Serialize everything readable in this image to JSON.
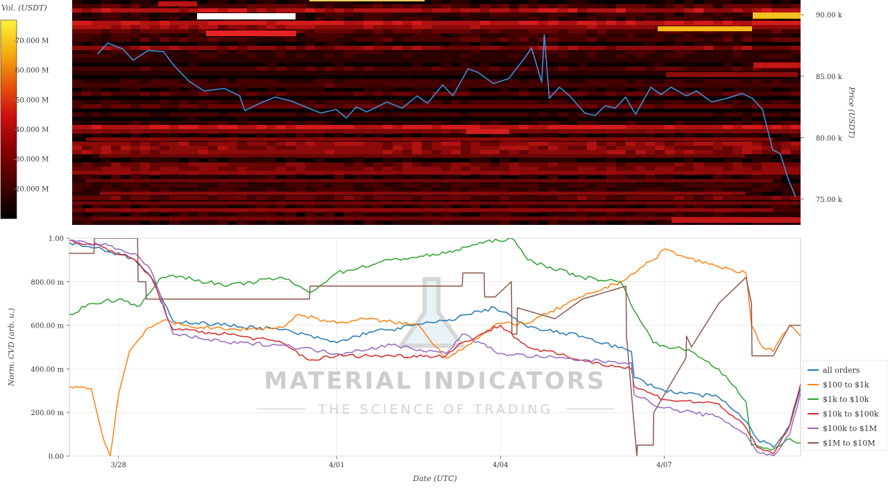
{
  "chart_data": [
    {
      "type": "heatmap",
      "colorbar": {
        "label": "Vol. (USDT)",
        "ticks": [
          "20.000 M",
          "30.000 M",
          "40.000 M",
          "50.000 M",
          "60.000 M",
          "70.000 M"
        ],
        "tick_values": [
          20,
          30,
          40,
          50,
          60,
          70
        ],
        "range": [
          10,
          77
        ],
        "colors": [
          "#000000",
          "#3a0000",
          "#8a0000",
          "#cc1010",
          "#e85a0a",
          "#f5b010",
          "#fff23a"
        ]
      },
      "y_axis": {
        "label": "Price (USDT)",
        "ticks": [
          "75.00 k",
          "80.00 k",
          "85.00 k",
          "90.00 k"
        ],
        "tick_values": [
          75,
          80,
          85,
          90
        ],
        "range": [
          72.9,
          91.2
        ]
      },
      "x_range": [
        -0.5,
        13.85
      ],
      "price_series": [
        [
          0,
          86.8
        ],
        [
          0.2,
          87.7
        ],
        [
          0.5,
          87.2
        ],
        [
          0.7,
          86.3
        ],
        [
          1.0,
          87.1
        ],
        [
          1.3,
          87.0
        ],
        [
          1.5,
          85.9
        ],
        [
          1.8,
          84.6
        ],
        [
          2.1,
          83.8
        ],
        [
          2.5,
          84.0
        ],
        [
          2.8,
          83.4
        ],
        [
          2.9,
          82.2
        ],
        [
          3.2,
          82.8
        ],
        [
          3.5,
          83.3
        ],
        [
          3.8,
          83.0
        ],
        [
          4.1,
          82.5
        ],
        [
          4.4,
          82.0
        ],
        [
          4.7,
          82.3
        ],
        [
          4.9,
          81.6
        ],
        [
          5.1,
          82.5
        ],
        [
          5.3,
          82.1
        ],
        [
          5.7,
          82.9
        ],
        [
          6.0,
          82.4
        ],
        [
          6.3,
          83.4
        ],
        [
          6.5,
          82.8
        ],
        [
          6.8,
          84.3
        ],
        [
          7.0,
          83.4
        ],
        [
          7.3,
          85.6
        ],
        [
          7.5,
          85.3
        ],
        [
          7.8,
          84.4
        ],
        [
          8.1,
          84.8
        ],
        [
          8.4,
          86.4
        ],
        [
          8.55,
          87.3
        ],
        [
          8.75,
          84.5
        ],
        [
          8.8,
          88.4
        ],
        [
          8.9,
          83.2
        ],
        [
          9.1,
          84.1
        ],
        [
          9.3,
          83.4
        ],
        [
          9.6,
          82.0
        ],
        [
          9.8,
          81.8
        ],
        [
          10.0,
          82.6
        ],
        [
          10.2,
          82.4
        ],
        [
          10.4,
          83.3
        ],
        [
          10.6,
          81.9
        ],
        [
          10.9,
          84.1
        ],
        [
          11.1,
          83.5
        ],
        [
          11.3,
          84.1
        ],
        [
          11.6,
          83.4
        ],
        [
          11.8,
          83.8
        ],
        [
          12.1,
          82.9
        ],
        [
          12.4,
          83.2
        ],
        [
          12.7,
          83.6
        ],
        [
          12.9,
          83.2
        ],
        [
          13.1,
          82.3
        ],
        [
          13.3,
          79.0
        ],
        [
          13.45,
          78.7
        ],
        [
          13.6,
          76.7
        ],
        [
          13.75,
          75.2
        ]
      ],
      "line_color": "#3d8fd6",
      "annotation": "White/yellow bars at top indicate large liquidity walls near 89–90 k"
    },
    {
      "type": "line",
      "xlabel": "Date (UTC)",
      "ylabel": "Norm. CVD (arb. u.)",
      "x_ticks": [
        "3/28",
        "4/01",
        "4/04",
        "4/07"
      ],
      "x_tick_values": [
        0,
        4,
        7,
        10
      ],
      "xlim": [
        -0.9,
        12.5
      ],
      "ylim": [
        0,
        1
      ],
      "y_ticks": [
        "0.00",
        "200.00 m",
        "400.00 m",
        "600.00 m",
        "800.00 m",
        "1.00"
      ],
      "y_tick_values": [
        0,
        0.2,
        0.4,
        0.6,
        0.8,
        1.0
      ],
      "legend_position": "right",
      "series": [
        {
          "name": "all orders",
          "color": "#1f77b4",
          "x": [
            -0.9,
            -0.3,
            0.3,
            0.6,
            1.0,
            2.0,
            3.0,
            4.0,
            4.6,
            5.0,
            5.4,
            6.0,
            6.4,
            6.9,
            7.1,
            7.5,
            8.5,
            9.4,
            9.45,
            10.0,
            11.0,
            11.5,
            11.7,
            12.0,
            12.3,
            12.5
          ],
          "y": [
            0.98,
            0.95,
            0.9,
            0.82,
            0.62,
            0.6,
            0.58,
            0.52,
            0.57,
            0.58,
            0.6,
            0.62,
            0.65,
            0.68,
            0.66,
            0.59,
            0.55,
            0.48,
            0.36,
            0.3,
            0.27,
            0.16,
            0.08,
            0.04,
            0.14,
            0.31
          ]
        },
        {
          "name": "$100 to $1k",
          "color": "#ff7f0e",
          "x": [
            -0.9,
            -0.5,
            -0.3,
            -0.15,
            0.0,
            0.2,
            0.5,
            0.8,
            1.2,
            2.0,
            3.0,
            3.3,
            4.0,
            4.5,
            5.5,
            6.0,
            6.4,
            7.0,
            7.5,
            8.5,
            9.2,
            9.8,
            10.0,
            10.4,
            11.0,
            11.5,
            11.6,
            11.8,
            12.0,
            12.3,
            12.5
          ],
          "y": [
            0.32,
            0.31,
            0.1,
            0.0,
            0.28,
            0.48,
            0.58,
            0.62,
            0.6,
            0.58,
            0.59,
            0.65,
            0.61,
            0.63,
            0.6,
            0.45,
            0.51,
            0.61,
            0.61,
            0.73,
            0.8,
            0.9,
            0.95,
            0.91,
            0.87,
            0.84,
            0.6,
            0.5,
            0.48,
            0.6,
            0.55
          ]
        },
        {
          "name": "$1k to $10k",
          "color": "#2ca02c",
          "x": [
            -0.9,
            -0.5,
            0.0,
            0.4,
            0.8,
            1.0,
            2.0,
            3.0,
            3.5,
            4.0,
            5.0,
            6.0,
            6.5,
            7.2,
            7.5,
            8.5,
            9.2,
            9.5,
            9.8,
            10.5,
            11.0,
            11.5,
            11.6,
            12.0,
            12.3,
            12.5
          ],
          "y": [
            0.65,
            0.7,
            0.72,
            0.69,
            0.82,
            0.83,
            0.78,
            0.82,
            0.75,
            0.84,
            0.9,
            0.93,
            0.97,
            1.0,
            0.9,
            0.82,
            0.8,
            0.65,
            0.52,
            0.48,
            0.4,
            0.25,
            0.05,
            0.03,
            0.08,
            0.06
          ]
        },
        {
          "name": "$10k to $100k",
          "color": "#d62728",
          "x": [
            -0.9,
            -0.3,
            0.3,
            0.6,
            1.0,
            2.0,
            3.0,
            3.5,
            4.0,
            5.0,
            6.0,
            6.3,
            7.0,
            7.5,
            8.5,
            9.4,
            9.45,
            10.0,
            11.0,
            11.5,
            11.7,
            12.0,
            12.3,
            12.5
          ],
          "y": [
            0.99,
            0.96,
            0.9,
            0.82,
            0.58,
            0.56,
            0.52,
            0.44,
            0.46,
            0.46,
            0.46,
            0.52,
            0.6,
            0.5,
            0.44,
            0.4,
            0.32,
            0.26,
            0.24,
            0.13,
            0.04,
            0.01,
            0.14,
            0.33
          ]
        },
        {
          "name": "$100k to $1M",
          "color": "#9467bd",
          "x": [
            -0.9,
            -0.3,
            0.3,
            0.6,
            1.0,
            2.0,
            3.0,
            4.0,
            5.0,
            6.0,
            6.3,
            7.0,
            8.5,
            9.4,
            9.45,
            10.0,
            11.0,
            11.5,
            11.7,
            12.0,
            12.3,
            12.5
          ],
          "y": [
            0.99,
            0.97,
            0.93,
            0.85,
            0.56,
            0.52,
            0.51,
            0.47,
            0.51,
            0.47,
            0.56,
            0.47,
            0.44,
            0.43,
            0.28,
            0.22,
            0.18,
            0.1,
            0.02,
            0.0,
            0.1,
            0.29
          ]
        },
        {
          "name": "$1M to $10M",
          "color": "#8c564b",
          "x": [
            -0.9,
            -0.7,
            -0.45,
            -0.44,
            0.35,
            0.36,
            0.5,
            0.51,
            1.0,
            3.5,
            3.51,
            4.7,
            4.71,
            6.3,
            6.31,
            6.7,
            6.71,
            6.9,
            7.2,
            7.21,
            7.3,
            7.31,
            8.0,
            8.5,
            9.3,
            9.31,
            9.5,
            9.51,
            9.8,
            9.81,
            10.4,
            10.41,
            10.5,
            11.0,
            11.5,
            11.6,
            11.61,
            12.0,
            12.3,
            12.5
          ],
          "y": [
            0.93,
            0.93,
            0.93,
            1.0,
            1.0,
            0.8,
            0.8,
            0.72,
            0.72,
            0.72,
            0.78,
            0.78,
            0.78,
            0.78,
            0.84,
            0.84,
            0.73,
            0.73,
            0.8,
            0.56,
            0.56,
            0.68,
            0.63,
            0.72,
            0.78,
            0.55,
            0.0,
            0.05,
            0.05,
            0.2,
            0.45,
            0.55,
            0.5,
            0.7,
            0.82,
            0.7,
            0.46,
            0.46,
            0.6,
            0.6
          ]
        }
      ],
      "watermark": {
        "main": "MATERIAL INDICATORS",
        "sub": "THE SCIENCE OF TRADING"
      }
    }
  ]
}
